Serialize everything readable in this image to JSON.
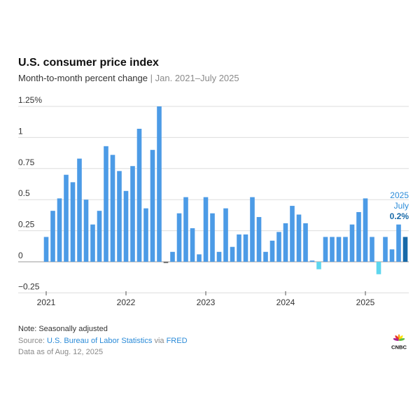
{
  "header": {
    "title": "U.S. consumer price index",
    "subtitle_main": "Month-to-month percent change",
    "subtitle_sep": "|",
    "subtitle_range": "Jan. 2021–July 2025"
  },
  "footer": {
    "note": "Note: Seasonally adjusted",
    "source_prefix": "Source: ",
    "source_name": "U.S. Bureau of Labor Statistics",
    "source_via": " via ",
    "source_fred": "FRED",
    "as_of": "Data as of Aug. 12, 2025",
    "logo_text": "CNBC"
  },
  "chart_data": {
    "type": "bar",
    "title": "U.S. consumer price index",
    "subtitle": "Month-to-month percent change | Jan. 2021–July 2025",
    "ylim": [
      -0.25,
      1.25
    ],
    "yticks": [
      -0.25,
      0,
      0.25,
      0.5,
      0.75,
      1,
      1.25
    ],
    "ytick_labels": [
      "−0.25",
      "0",
      "0.25",
      "0.5",
      "0.75",
      "1",
      "1.25%"
    ],
    "xtick_labels": [
      "2021",
      "2022",
      "2023",
      "2024",
      "2025"
    ],
    "xtick_indices": [
      0,
      12,
      24,
      36,
      48
    ],
    "grid": true,
    "colors": {
      "positive": "#4c9be6",
      "negative": "#5ed6ee",
      "highlight": "#1769a8",
      "grid": "#dddddd",
      "tick_text": "#333333",
      "annotation": "#2b8bd8"
    },
    "months": [
      "2021-01",
      "2021-02",
      "2021-03",
      "2021-04",
      "2021-05",
      "2021-06",
      "2021-07",
      "2021-08",
      "2021-09",
      "2021-10",
      "2021-11",
      "2021-12",
      "2022-01",
      "2022-02",
      "2022-03",
      "2022-04",
      "2022-05",
      "2022-06",
      "2022-07",
      "2022-08",
      "2022-09",
      "2022-10",
      "2022-11",
      "2022-12",
      "2023-01",
      "2023-02",
      "2023-03",
      "2023-04",
      "2023-05",
      "2023-06",
      "2023-07",
      "2023-08",
      "2023-09",
      "2023-10",
      "2023-11",
      "2023-12",
      "2024-01",
      "2024-02",
      "2024-03",
      "2024-04",
      "2024-05",
      "2024-06",
      "2024-07",
      "2024-08",
      "2024-09",
      "2024-10",
      "2024-11",
      "2024-12",
      "2025-01",
      "2025-02",
      "2025-03",
      "2025-04",
      "2025-05",
      "2025-06",
      "2025-07"
    ],
    "values": [
      0.2,
      0.41,
      0.51,
      0.7,
      0.64,
      0.83,
      0.5,
      0.3,
      0.41,
      0.93,
      0.86,
      0.73,
      0.57,
      0.77,
      1.07,
      0.43,
      0.9,
      1.25,
      -0.01,
      0.08,
      0.39,
      0.52,
      0.27,
      0.06,
      0.52,
      0.39,
      0.08,
      0.43,
      0.12,
      0.22,
      0.22,
      0.52,
      0.36,
      0.08,
      0.17,
      0.24,
      0.31,
      0.45,
      0.38,
      0.31,
      0.01,
      -0.06,
      0.2,
      0.2,
      0.2,
      0.2,
      0.3,
      0.4,
      0.51,
      0.2,
      -0.1,
      0.2,
      0.1,
      0.3,
      0.2
    ],
    "highlight_index": 54,
    "annotation": {
      "line1": "2025",
      "line2": "July",
      "value": "0.2%"
    }
  }
}
